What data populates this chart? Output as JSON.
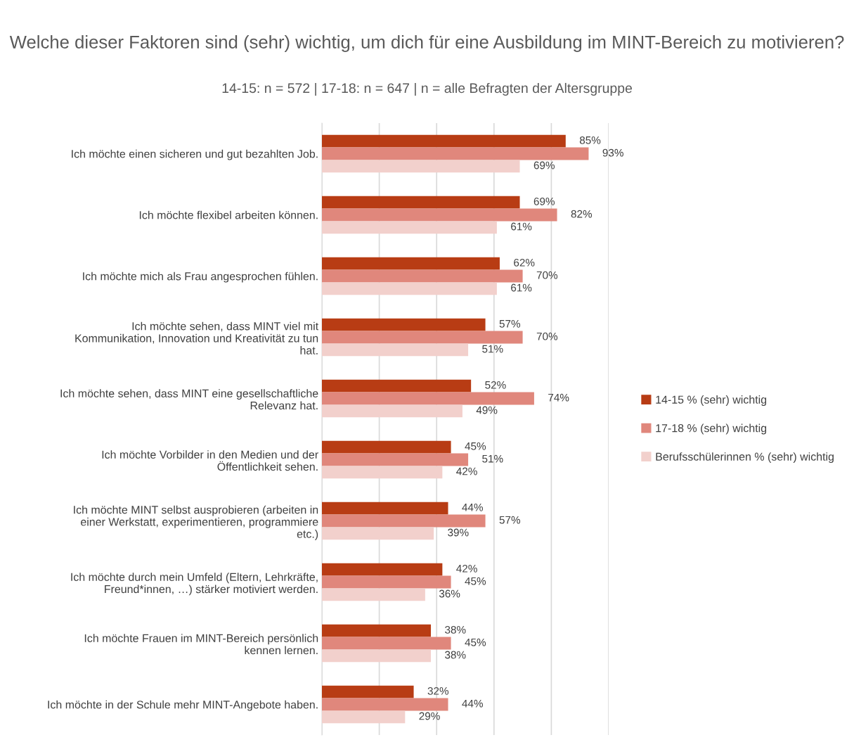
{
  "chart_data": {
    "type": "bar",
    "orientation": "horizontal",
    "title": "Welche dieser Faktoren sind (sehr) wichtig, um dich für eine Ausbildung im MINT-Bereich zu motivieren?",
    "subtitle": "14-15: n = 572 | 17-18: n = 647 | n = alle Befragten der Altersgruppe",
    "categories": [
      "Ich möchte einen sicheren und gut bezahlten Job.",
      "Ich möchte flexibel arbeiten können.",
      "Ich möchte mich als Frau angesprochen fühlen.",
      "Ich möchte sehen, dass MINT viel mit Kommunikation, Innovation und Kreativität zu tun hat.",
      "Ich möchte sehen, dass MINT eine gesellschaftliche Relevanz hat.",
      "Ich möchte Vorbilder in den Medien und der Öffentlichkeit sehen.",
      "Ich möchte MINT selbst ausprobieren (arbeiten in einer Werkstatt, experimentieren, programmiere etc.)",
      "Ich möchte durch mein Umfeld (Eltern, Lehrkräfte, Freund*innen, …) stärker motiviert werden.",
      "Ich möchte Frauen im MINT-Bereich persönlich kennen lernen.",
      "Ich möchte in der Schule mehr MINT-Angebote haben."
    ],
    "series": [
      {
        "name": "14-15 % (sehr) wichtig",
        "color": "#b83c14",
        "values": [
          85,
          69,
          62,
          57,
          52,
          45,
          44,
          42,
          38,
          32
        ],
        "value_labels": [
          "85%",
          "69%",
          "62%",
          "57%",
          "52%",
          "45%",
          "44%",
          "42%",
          "38%",
          "32%"
        ]
      },
      {
        "name": "17-18 % (sehr) wichtig",
        "color": "#e0877c",
        "values": [
          93,
          82,
          70,
          70,
          74,
          51,
          57,
          45,
          45,
          44
        ],
        "value_labels": [
          "93%",
          "82%",
          "70%",
          "70%",
          "74%",
          "51%",
          "57%",
          "45%",
          "45%",
          "44%"
        ]
      },
      {
        "name": "Berufsschülerinnen % (sehr) wichtig",
        "color": "#f2d0cc",
        "values": [
          69,
          61,
          61,
          51,
          49,
          42,
          39,
          36,
          38,
          29
        ],
        "value_labels": [
          "69%",
          "61%",
          "61%",
          "51%",
          "49%",
          "42%",
          "39%",
          "36%",
          "38%",
          "29%"
        ]
      }
    ],
    "xlim": [
      0,
      100
    ],
    "xticks": [
      {
        "value": 0,
        "label": null
      },
      {
        "value": 20,
        "label": null
      },
      {
        "value": 40,
        "label": null
      },
      {
        "value": 60,
        "label": null
      },
      {
        "value": 80,
        "label": null
      },
      {
        "value": 100,
        "label": null
      }
    ],
    "grid": "x",
    "legend": "right"
  }
}
